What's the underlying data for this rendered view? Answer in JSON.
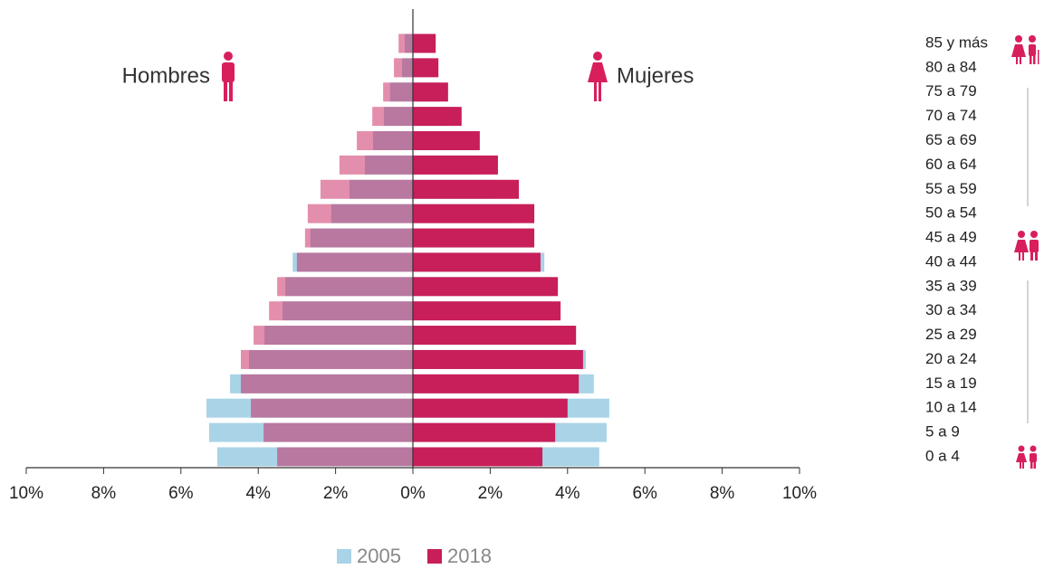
{
  "chart_data": {
    "type": "population-pyramid",
    "sides": [
      "Hombres",
      "Mujeres"
    ],
    "categories": [
      "85 y más",
      "80 a 84",
      "75 a 79",
      "70 a 74",
      "65 a 69",
      "60 a 64",
      "55 a 59",
      "50 a 54",
      "45 a 49",
      "40 a 44",
      "35 a 39",
      "30 a 34",
      "25 a 29",
      "20 a 24",
      "15 a 19",
      "10 a 14",
      "5 a 9",
      "0 a 4"
    ],
    "series": [
      {
        "name": "2005",
        "color": "#a9d3e7",
        "values": [
          [
            0.21,
            0.28,
            0.59,
            0.75,
            1.03,
            1.24,
            1.64,
            2.11,
            2.65,
            3.11,
            3.3,
            3.37,
            3.84,
            4.24,
            4.73,
            5.34,
            5.27,
            5.06
          ],
          [
            0.4,
            0.45,
            0.7,
            1.0,
            1.35,
            1.65,
            2.1,
            2.6,
            3.0,
            3.4,
            3.55,
            3.6,
            4.1,
            4.47,
            4.68,
            5.08,
            5.01,
            4.82
          ]
        ]
      },
      {
        "name": "2018",
        "color": "#c81e5a",
        "values": [
          [
            0.37,
            0.49,
            0.77,
            1.05,
            1.45,
            1.9,
            2.39,
            2.72,
            2.79,
            3.0,
            3.51,
            3.72,
            4.12,
            4.45,
            4.45,
            4.19,
            3.86,
            3.51
          ],
          [
            0.59,
            0.66,
            0.91,
            1.26,
            1.73,
            2.2,
            2.74,
            3.14,
            3.14,
            3.3,
            3.75,
            3.82,
            4.22,
            4.4,
            4.29,
            4.0,
            3.68,
            3.35
          ]
        ]
      }
    ],
    "xlim": [
      -10,
      10
    ],
    "xticks": [
      {
        "value": -10,
        "label": "10%"
      },
      {
        "value": -8,
        "label": "8%"
      },
      {
        "value": -6,
        "label": "6%"
      },
      {
        "value": -4,
        "label": "4%"
      },
      {
        "value": -2,
        "label": "2%"
      },
      {
        "value": 0,
        "label": "0%"
      },
      {
        "value": 2,
        "label": "2%"
      },
      {
        "value": 4,
        "label": "4%"
      },
      {
        "value": 6,
        "label": "6%"
      },
      {
        "value": 8,
        "label": "8%"
      },
      {
        "value": 10,
        "label": "10%"
      }
    ]
  }
}
